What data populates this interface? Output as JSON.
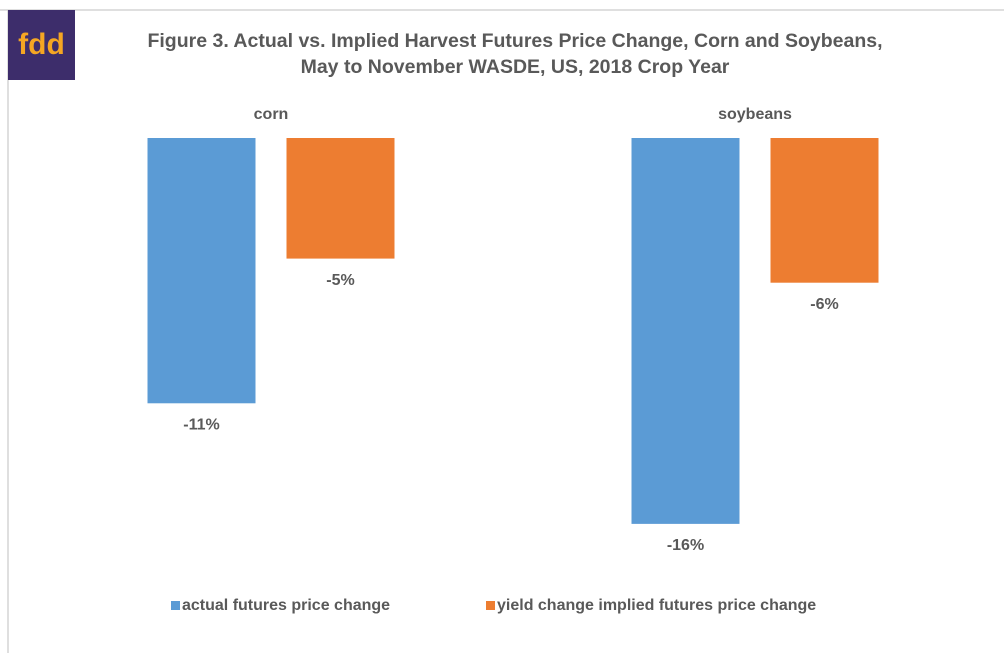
{
  "chart_data": {
    "type": "bar",
    "logo": "fdd",
    "title": "Figure 3. Actual vs. Implied Harvest Futures Price Change, Corn and Soybeans, May to November WASDE, US, 2018 Crop Year",
    "categories": [
      "corn",
      "soybeans"
    ],
    "series": [
      {
        "name": "actual futures price change",
        "color": "#5b9bd5",
        "values": [
          -11,
          -16
        ],
        "value_labels": [
          "-11%",
          "-16%"
        ]
      },
      {
        "name": "yield change implied futures price change",
        "color": "#ed7d31",
        "values": [
          -5,
          -6
        ],
        "value_labels": [
          "-5%",
          "-6%"
        ]
      }
    ],
    "ylim": [
      -17,
      0
    ],
    "legend": "bottom"
  }
}
